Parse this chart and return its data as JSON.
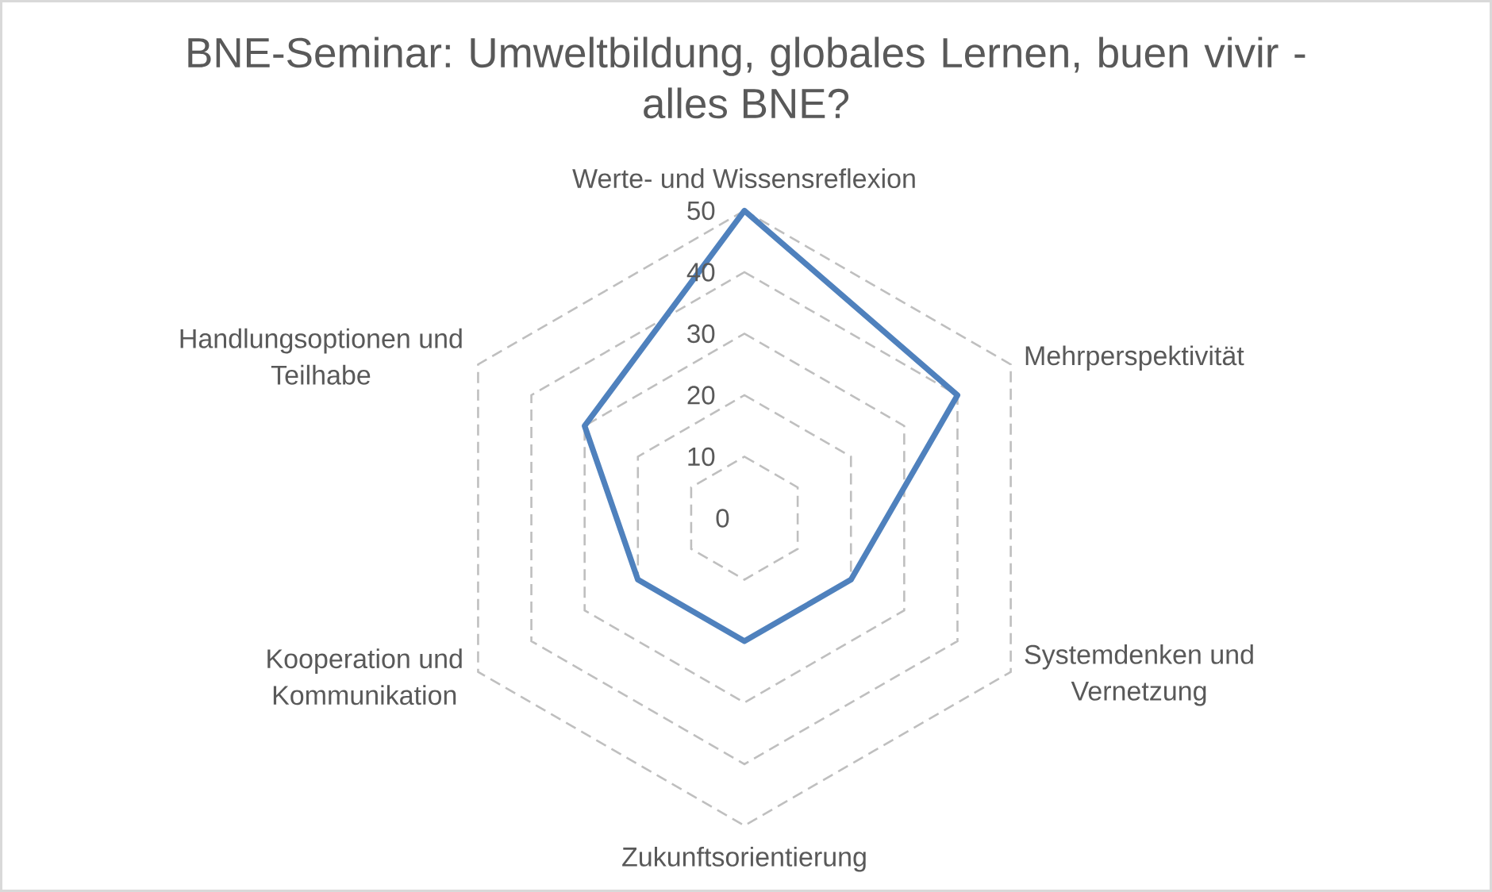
{
  "chart_data": {
    "type": "radar",
    "title": "BNE-Seminar: Umweltbildung, globales Lernen, buen vivir - alles BNE?",
    "categories": [
      "Werte- und Wissensreflexion",
      "Mehrperspektivität",
      "Systemdenken und Vernetzung",
      "Zukunftsorientierung",
      "Kooperation und Kommunikation",
      "Handlungsoptionen und Teilhabe"
    ],
    "series": [
      {
        "color": "#4f81bd",
        "values": [
          50,
          40,
          20,
          20,
          20,
          30
        ]
      }
    ],
    "ylim": [
      0,
      50
    ],
    "yticks": [
      0,
      10,
      20,
      30,
      40,
      50
    ],
    "grid": true
  }
}
